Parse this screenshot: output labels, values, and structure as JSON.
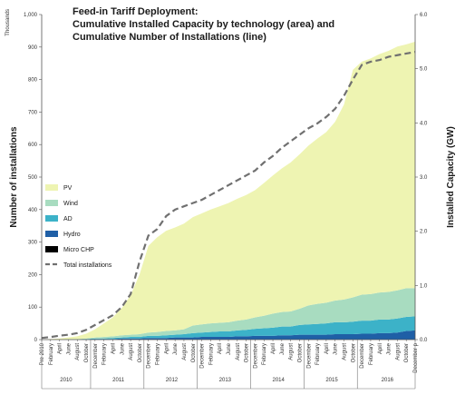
{
  "chart_data": {
    "type": "area",
    "title_lines": [
      "Feed-in Tariff Deployment:",
      "Cumulative Installed Capacity by technology (area) and",
      "Cumulative Number of Installations (line)"
    ],
    "ylabel_left": "Number of installations",
    "ylabel_left_unit": "Thousands",
    "ylabel_right": "Installed Capacity (GW)",
    "ylim_left": [
      0,
      1000
    ],
    "ylim_right": [
      0,
      6
    ],
    "yticks_left": [
      "0",
      "100",
      "200",
      "300",
      "400",
      "500",
      "600",
      "700",
      "800",
      "900",
      "1,000"
    ],
    "yticks_right": [
      "0.0",
      "1.0",
      "2.0",
      "3.0",
      "4.0",
      "5.0",
      "6.0"
    ],
    "x_labels": [
      "Pre 2010",
      "February",
      "April",
      "June",
      "August",
      "October",
      "December",
      "February",
      "April",
      "June",
      "August",
      "October",
      "December",
      "February",
      "April",
      "June",
      "August",
      "October",
      "December",
      "February",
      "April",
      "June",
      "August",
      "October",
      "December",
      "February",
      "April",
      "June",
      "August",
      "October",
      "December",
      "February",
      "April",
      "June",
      "August",
      "October",
      "December",
      "February",
      "April",
      "June",
      "August",
      "October",
      "December p"
    ],
    "years": [
      "2010",
      "2011",
      "2012",
      "2013",
      "2014",
      "2015",
      "2016"
    ],
    "grid": false,
    "legend_position": "left",
    "capacity_series": [
      {
        "name": "Micro CHP",
        "color": "#000000",
        "values": [
          0,
          0,
          0,
          0,
          0,
          0,
          0,
          0,
          0,
          0,
          0,
          0,
          0,
          0,
          0,
          0,
          0,
          0,
          0,
          0,
          0,
          0,
          0,
          0,
          0,
          0,
          0,
          0,
          0,
          0,
          0,
          0,
          0,
          0,
          0,
          0,
          0,
          0,
          0,
          0,
          0,
          0,
          0
        ]
      },
      {
        "name": "Hydro",
        "color": "#1f5fa6",
        "values": [
          0.0,
          0.0,
          0.0,
          0.0,
          0.0,
          0.0,
          0.01,
          0.01,
          0.01,
          0.02,
          0.02,
          0.02,
          0.03,
          0.03,
          0.03,
          0.04,
          0.04,
          0.04,
          0.05,
          0.05,
          0.05,
          0.05,
          0.06,
          0.06,
          0.07,
          0.07,
          0.07,
          0.08,
          0.08,
          0.09,
          0.09,
          0.09,
          0.09,
          0.1,
          0.1,
          0.1,
          0.11,
          0.11,
          0.12,
          0.12,
          0.13,
          0.16,
          0.17
        ]
      },
      {
        "name": "AD",
        "color": "#3cb2c8",
        "values": [
          0.0,
          0.0,
          0.0,
          0.0,
          0.0,
          0.01,
          0.01,
          0.01,
          0.02,
          0.02,
          0.03,
          0.03,
          0.04,
          0.04,
          0.05,
          0.05,
          0.06,
          0.08,
          0.08,
          0.09,
          0.1,
          0.1,
          0.11,
          0.12,
          0.13,
          0.14,
          0.15,
          0.16,
          0.16,
          0.18,
          0.19,
          0.2,
          0.21,
          0.22,
          0.22,
          0.23,
          0.24,
          0.24,
          0.25,
          0.25,
          0.26,
          0.26,
          0.26
        ]
      },
      {
        "name": "Wind",
        "color": "#a8dcc0",
        "values": [
          0.0,
          0.0,
          0.0,
          0.01,
          0.01,
          0.01,
          0.02,
          0.03,
          0.03,
          0.04,
          0.04,
          0.05,
          0.06,
          0.07,
          0.08,
          0.08,
          0.09,
          0.14,
          0.15,
          0.16,
          0.16,
          0.17,
          0.18,
          0.19,
          0.21,
          0.23,
          0.26,
          0.27,
          0.28,
          0.3,
          0.35,
          0.37,
          0.38,
          0.4,
          0.42,
          0.45,
          0.48,
          0.49,
          0.5,
          0.51,
          0.52,
          0.53,
          0.52
        ]
      },
      {
        "name": "PV",
        "color": "#eef4b2",
        "values": [
          0.0,
          0.01,
          0.02,
          0.03,
          0.05,
          0.09,
          0.15,
          0.25,
          0.35,
          0.5,
          0.73,
          1.1,
          1.6,
          1.75,
          1.85,
          1.9,
          1.95,
          2.0,
          2.05,
          2.1,
          2.15,
          2.2,
          2.25,
          2.3,
          2.35,
          2.45,
          2.55,
          2.65,
          2.75,
          2.85,
          2.95,
          3.05,
          3.15,
          3.3,
          3.6,
          4.2,
          4.3,
          4.35,
          4.4,
          4.45,
          4.5,
          4.5,
          4.55
        ]
      }
    ],
    "installations_series": {
      "name": "Total installations",
      "color": "#707070",
      "values": [
        5,
        8,
        12,
        15,
        20,
        30,
        45,
        60,
        75,
        100,
        140,
        240,
        320,
        340,
        380,
        400,
        410,
        420,
        430,
        445,
        460,
        475,
        490,
        505,
        520,
        545,
        565,
        590,
        610,
        630,
        650,
        665,
        685,
        710,
        750,
        800,
        845,
        855,
        860,
        870,
        875,
        880,
        885
      ]
    }
  }
}
